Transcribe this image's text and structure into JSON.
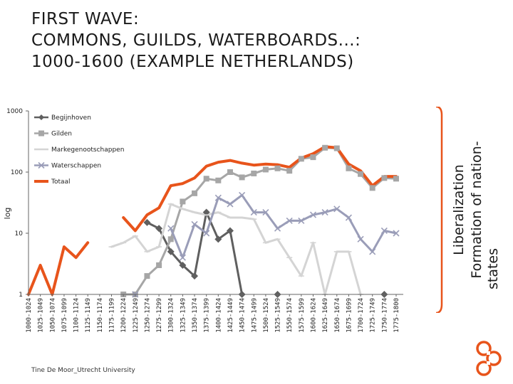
{
  "title": {
    "line1": "FIRST WAVE:",
    "line2": "COMMONS, GUILDS, WATERBOARDS...:",
    "line3": "1000-1600 (EXAMPLE NETHERLANDS)"
  },
  "side_label": {
    "line1": "Liberalization",
    "line2": "Formation of nation-",
    "line3": "states"
  },
  "footer": "Tine De Moor_Utrecht University",
  "colors": {
    "accent": "#e8541b",
    "begijnhoven": "#5f5f5f",
    "gilden": "#a6a6a6",
    "markegenootschappen": "#d4d4d4",
    "waterschappen": "#9a9db8",
    "totaal": "#e8541b"
  },
  "chart_data": {
    "type": "line",
    "title": "",
    "xlabel": "",
    "ylabel": "log",
    "yscale": "log",
    "ylim": [
      1,
      1000
    ],
    "yticks": [
      {
        "value": 1,
        "label": "1"
      },
      {
        "value": 10,
        "label": "10"
      },
      {
        "value": 100,
        "label": "100"
      },
      {
        "value": 1000,
        "label": "1000"
      }
    ],
    "legend_position": "top-left",
    "categories": [
      "1000-1024",
      "1025-1049",
      "1050-1074",
      "1075-1099",
      "1100-1124",
      "1125-1149",
      "1150-1174",
      "1175-1199",
      "1200-1224",
      "1225-1249",
      "1250-1274",
      "1275-1299",
      "1300-1324",
      "1325-1349",
      "1350-1374",
      "1375-1399",
      "1400-1424",
      "1425-1449",
      "1450-1474",
      "1475-1499",
      "1500-1524",
      "1525-1549",
      "1550-1574",
      "1575-1599",
      "1600-1624",
      "1625-1649",
      "1650-1674",
      "1675-1699",
      "1700-1724",
      "1725-1749",
      "1750-1774",
      "1775-1800"
    ],
    "series": [
      {
        "name": "Begijnhoven",
        "color_key": "begijnhoven",
        "marker": "diamond",
        "values": [
          null,
          null,
          null,
          null,
          null,
          null,
          null,
          null,
          null,
          null,
          15,
          12,
          5,
          3,
          2,
          22,
          8,
          11,
          1,
          null,
          null,
          1,
          null,
          null,
          null,
          null,
          null,
          null,
          null,
          null,
          1,
          null
        ]
      },
      {
        "name": "Gilden",
        "color_key": "gilden",
        "marker": "square",
        "values": [
          null,
          null,
          null,
          null,
          null,
          null,
          null,
          null,
          1,
          1,
          2,
          3,
          8,
          33,
          45,
          78,
          73,
          100,
          82,
          95,
          110,
          115,
          105,
          165,
          175,
          250,
          245,
          115,
          93,
          55,
          80,
          78
        ]
      },
      {
        "name": "Markegenootschappen",
        "color_key": "markegenootschappen",
        "marker": "dash",
        "values": [
          null,
          null,
          null,
          null,
          null,
          null,
          null,
          6,
          7,
          9,
          5,
          6,
          30,
          25,
          22,
          20,
          22,
          18,
          18,
          17,
          7,
          8,
          4,
          2,
          7,
          1,
          5,
          5,
          1,
          null,
          null,
          null
        ]
      },
      {
        "name": "Waterschappen",
        "color_key": "waterschappen",
        "marker": "x",
        "values": [
          null,
          null,
          null,
          null,
          null,
          null,
          null,
          null,
          null,
          1,
          null,
          null,
          12,
          4,
          14,
          10,
          38,
          30,
          42,
          22,
          22,
          12,
          16,
          16,
          20,
          22,
          25,
          18,
          8,
          5,
          11,
          10
        ]
      },
      {
        "name": "Totaal",
        "color_key": "totaal",
        "marker": "none",
        "values": [
          1,
          3,
          1,
          6,
          4,
          7,
          null,
          null,
          18,
          11,
          20,
          26,
          60,
          65,
          80,
          125,
          145,
          155,
          140,
          130,
          135,
          132,
          120,
          170,
          200,
          260,
          250,
          135,
          105,
          60,
          85,
          85
        ]
      }
    ]
  }
}
